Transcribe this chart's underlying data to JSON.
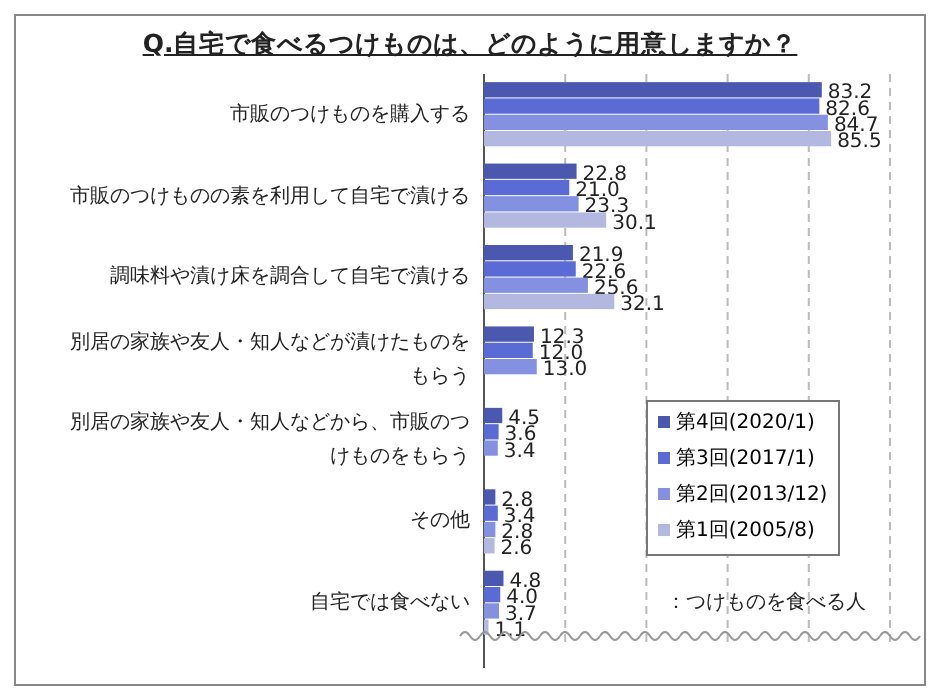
{
  "chart_data": {
    "type": "bar",
    "orientation": "horizontal",
    "title": "Q.自宅で食べるつけものは、どのように用意しますか？",
    "categories": [
      "市販のつけものを購入する",
      "市販のつけものの素を利用して自宅で漬ける",
      "調味料や漬け床を調合して自宅で漬ける",
      "別居の家族や友人・知人などが漬けたものをもらう",
      "別居の家族や友人・知人などから、市販のつけものをもらう",
      "その他",
      "自宅では食べない"
    ],
    "series": [
      {
        "name": "第4回(2020/1)",
        "color": "#4a58b0",
        "values": [
          83.2,
          22.8,
          21.9,
          12.3,
          4.5,
          2.8,
          4.8
        ],
        "value_labels": [
          "83.2",
          "22.8",
          "21.9",
          "12.3",
          "4.5",
          "2.8",
          "4.8"
        ]
      },
      {
        "name": "第3回(2017/1)",
        "color": "#5b6bd6",
        "values": [
          82.6,
          21.0,
          22.6,
          12.0,
          3.6,
          3.4,
          4.0
        ],
        "value_labels": [
          "82.6",
          "21.0",
          "22.6",
          "12.0",
          "3.6",
          "3.4",
          "4.0"
        ]
      },
      {
        "name": "第2回(2013/12)",
        "color": "#8391e0",
        "values": [
          84.7,
          23.3,
          25.6,
          13.0,
          3.4,
          2.8,
          3.7
        ],
        "value_labels": [
          "84.7",
          "23.3",
          "25.6",
          "13.0",
          "3.4",
          "2.8",
          "3.7"
        ]
      },
      {
        "name": "第1回(2005/8)",
        "color": "#b3b8e0",
        "values": [
          85.5,
          30.1,
          32.1,
          null,
          null,
          2.6,
          1.1
        ],
        "value_labels": [
          "85.5",
          "30.1",
          "32.1",
          null,
          null,
          "2.6",
          "1.1"
        ]
      }
    ],
    "xlim": [
      0,
      100
    ],
    "xticks": [
      {
        "value": 20,
        "label": null
      },
      {
        "value": 40,
        "label": null
      },
      {
        "value": 60,
        "label": null
      },
      {
        "value": 80,
        "label": null
      },
      {
        "value": 100,
        "label": null
      }
    ],
    "grid": "x",
    "legend": "bottom right",
    "tick_labels": "y",
    "annotations": [
      "：つけものを食べる人"
    ]
  }
}
